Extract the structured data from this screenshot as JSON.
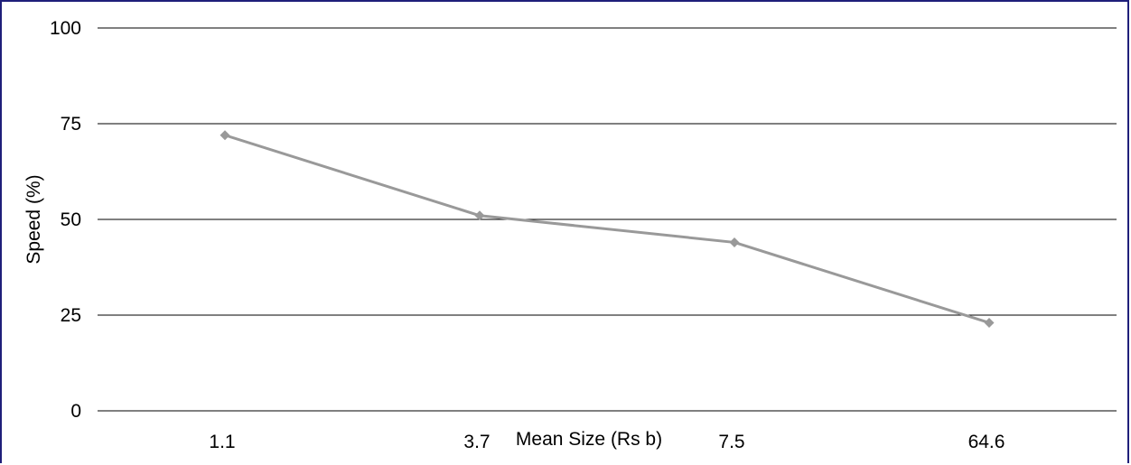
{
  "chart_data": {
    "type": "line",
    "title": "",
    "xlabel": "Mean Size (Rs b)",
    "ylabel": "Speed (%)",
    "categories": [
      "1.1",
      "3.7",
      "7.5",
      "64.6"
    ],
    "series": [
      {
        "values": [
          72,
          51,
          44,
          23
        ],
        "color": "#999999",
        "marker": "diamond"
      }
    ],
    "ylim": [
      0,
      100
    ],
    "yticks": [
      0,
      25,
      50,
      75,
      100
    ],
    "ytick_labels": [
      "0",
      "25",
      "50",
      "75",
      "100"
    ],
    "grid": "horizontal",
    "legend": "none"
  },
  "colors": {
    "border": "#1f1f7a",
    "gridline": "#000000",
    "series": "#999999"
  }
}
